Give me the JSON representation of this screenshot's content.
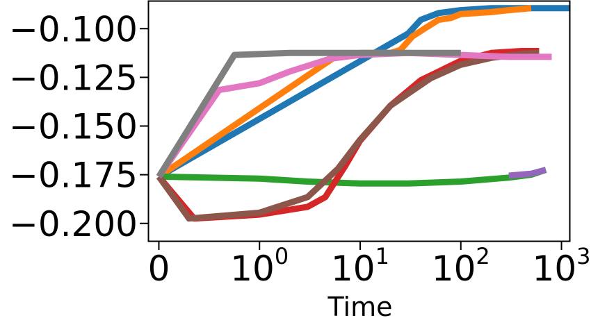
{
  "chart_data": {
    "type": "line",
    "title": "",
    "xlabel": "Time",
    "ylabel": "",
    "xscale": "symlog",
    "xlim": [
      -0.1,
      1200
    ],
    "ylim": [
      -0.209,
      -0.086
    ],
    "grid": false,
    "legend": "none",
    "x_ticks": [
      {
        "value": 0,
        "base": "0",
        "exp": ""
      },
      {
        "value": 1,
        "base": "10",
        "exp": "0"
      },
      {
        "value": 10,
        "base": "10",
        "exp": "1"
      },
      {
        "value": 100,
        "base": "10",
        "exp": "2"
      },
      {
        "value": 1000,
        "base": "10",
        "exp": "3"
      }
    ],
    "y_ticks": [
      {
        "value": -0.1,
        "label": "−0.100"
      },
      {
        "value": -0.125,
        "label": "−0.125"
      },
      {
        "value": -0.15,
        "label": "−0.150"
      },
      {
        "value": -0.175,
        "label": "−0.175"
      },
      {
        "value": -0.2,
        "label": "−0.200"
      }
    ],
    "series": [
      {
        "color": "#1f77b4",
        "points": [
          [
            0,
            -0.176
          ],
          [
            30,
            -0.1025
          ],
          [
            40,
            -0.0955
          ],
          [
            60,
            -0.092
          ],
          [
            100,
            -0.0905
          ],
          [
            200,
            -0.0895
          ],
          [
            600,
            -0.0895
          ],
          [
            1200,
            -0.0895
          ]
        ]
      },
      {
        "color": "#ff7f0e",
        "points": [
          [
            0,
            -0.176
          ],
          [
            6,
            -0.1135
          ],
          [
            10,
            -0.1125
          ],
          [
            20,
            -0.1125
          ],
          [
            25,
            -0.111
          ],
          [
            33,
            -0.104
          ],
          [
            45,
            -0.0995
          ],
          [
            60,
            -0.0955
          ],
          [
            80,
            -0.0945
          ],
          [
            100,
            -0.0925
          ],
          [
            200,
            -0.0915
          ],
          [
            300,
            -0.0905
          ],
          [
            500,
            -0.0895
          ]
        ]
      },
      {
        "color": "#2ca02c",
        "points": [
          [
            0,
            -0.176
          ],
          [
            1,
            -0.177
          ],
          [
            3,
            -0.1785
          ],
          [
            10,
            -0.1795
          ],
          [
            30,
            -0.1795
          ],
          [
            100,
            -0.1785
          ],
          [
            300,
            -0.1765
          ],
          [
            500,
            -0.175
          ],
          [
            700,
            -0.1725
          ]
        ]
      },
      {
        "color": "#d62728",
        "points": [
          [
            0,
            -0.176
          ],
          [
            0.35,
            -0.1975
          ],
          [
            1,
            -0.1955
          ],
          [
            3,
            -0.1915
          ],
          [
            4.5,
            -0.1865
          ],
          [
            7,
            -0.171
          ],
          [
            10,
            -0.1575
          ],
          [
            20,
            -0.1395
          ],
          [
            40,
            -0.1265
          ],
          [
            100,
            -0.1165
          ],
          [
            200,
            -0.1125
          ],
          [
            400,
            -0.1115
          ],
          [
            600,
            -0.1115
          ]
        ]
      },
      {
        "color": "#8c564b",
        "points": [
          [
            0,
            -0.176
          ],
          [
            0.3,
            -0.1975
          ],
          [
            1,
            -0.1945
          ],
          [
            3,
            -0.1865
          ],
          [
            6,
            -0.172
          ],
          [
            10,
            -0.157
          ],
          [
            20,
            -0.1395
          ],
          [
            50,
            -0.1255
          ],
          [
            100,
            -0.1185
          ],
          [
            200,
            -0.115
          ],
          [
            400,
            -0.113
          ],
          [
            600,
            -0.1125
          ]
        ]
      },
      {
        "color": "#e377c2",
        "points": [
          [
            0,
            -0.176
          ],
          [
            0.6,
            -0.1315
          ],
          [
            1,
            -0.128
          ],
          [
            2,
            -0.122
          ],
          [
            5,
            -0.1155
          ],
          [
            10,
            -0.1135
          ],
          [
            30,
            -0.1125
          ],
          [
            100,
            -0.1135
          ],
          [
            300,
            -0.1145
          ],
          [
            800,
            -0.1145
          ]
        ]
      },
      {
        "color": "#7f7f7f",
        "points": [
          [
            0,
            -0.176
          ],
          [
            0.75,
            -0.1135
          ],
          [
            2,
            -0.1125
          ],
          [
            10,
            -0.1125
          ],
          [
            50,
            -0.1125
          ],
          [
            100,
            -0.1125
          ]
        ]
      },
      {
        "color": "#9467bd",
        "points": [
          [
            300,
            -0.1755
          ],
          [
            500,
            -0.1745
          ],
          [
            700,
            -0.1725
          ]
        ]
      }
    ]
  }
}
